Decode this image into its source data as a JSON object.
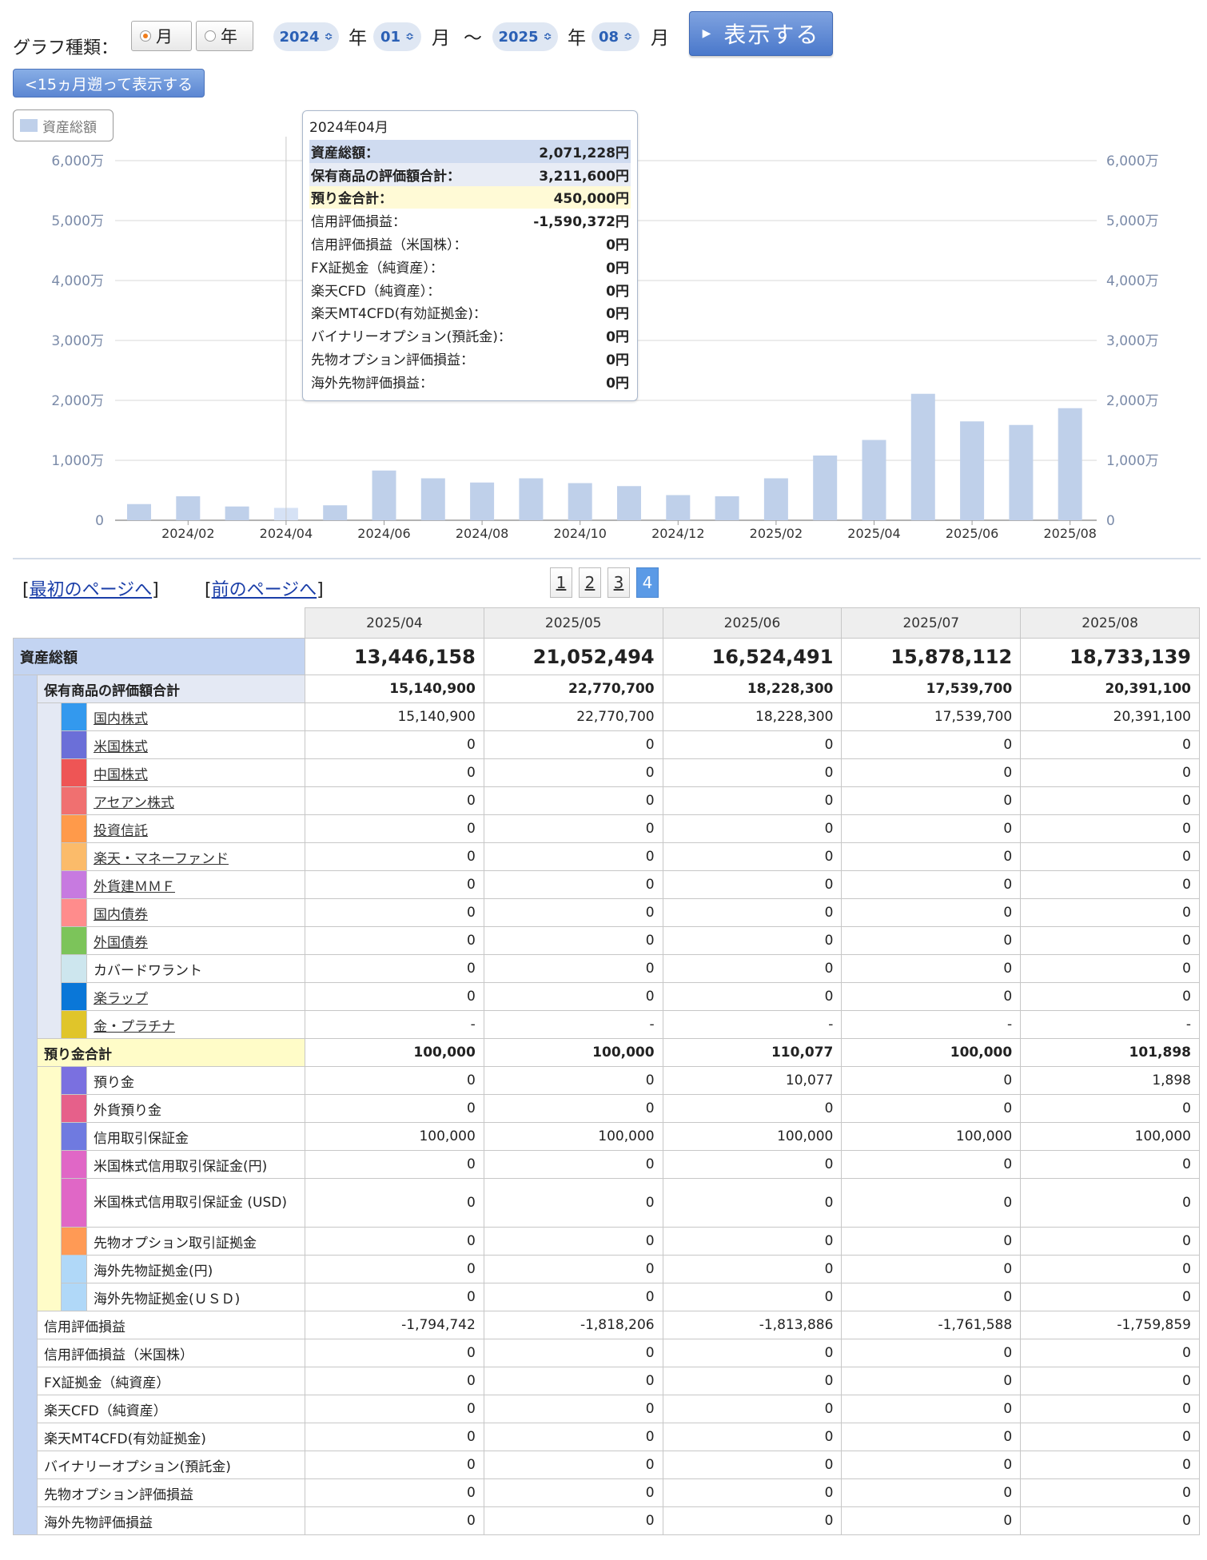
{
  "controls": {
    "graph_type_label": "グラフ種類：",
    "monthly": "月",
    "yearly": "年",
    "start_year": "2024",
    "start_month": "01",
    "end_year": "2025",
    "end_month": "08",
    "year_unit": "年",
    "month_unit": "月",
    "tilde": "〜",
    "show_button": "表示する",
    "back_button": "<15ヵ月遡って表示する"
  },
  "chart_data": {
    "type": "bar",
    "legend": "資産総額",
    "categories": [
      "2024/01",
      "2024/02",
      "2024/03",
      "2024/04",
      "2024/05",
      "2024/06",
      "2024/07",
      "2024/08",
      "2024/09",
      "2024/10",
      "2024/11",
      "2024/12",
      "2025/01",
      "2025/02",
      "2025/03",
      "2025/04",
      "2025/05",
      "2025/06",
      "2025/07",
      "2025/08"
    ],
    "x_tick_labels": [
      "2024/02",
      "2024/04",
      "2024/06",
      "2024/08",
      "2024/10",
      "2024/12",
      "2025/02",
      "2025/04",
      "2025/06",
      "2025/08"
    ],
    "values": [
      2.7,
      4.0,
      2.3,
      2.07,
      2.5,
      8.3,
      7.0,
      6.3,
      7.0,
      6.2,
      5.7,
      4.2,
      4.0,
      7.0,
      10.8,
      13.4,
      21.1,
      16.5,
      15.9,
      18.7
    ],
    "value_unit": "百万円",
    "ylim": [
      0,
      60
    ],
    "y_tick_labels": [
      "0",
      "1,000万",
      "2,000万",
      "3,000万",
      "4,000万",
      "5,000万",
      "6,000万"
    ],
    "highlight_index": 3,
    "colors": {
      "bar": "#bfd0ea",
      "bar_highlight": "#d6e2f5",
      "grid": "#d9d9d9"
    }
  },
  "tooltip": {
    "title": "2024年04月",
    "rows": [
      {
        "label": "資産総額：",
        "value": "2,071,228円"
      },
      {
        "label": "保有商品の評価額合計：",
        "value": "3,211,600円"
      },
      {
        "label": "預り金合計：",
        "value": "450,000円"
      },
      {
        "label": "信用評価損益：",
        "value": "-1,590,372円"
      },
      {
        "label": "信用評価損益（米国株）：",
        "value": "0円"
      },
      {
        "label": "FX証拠金（純資産）：",
        "value": "0円"
      },
      {
        "label": "楽天CFD（純資産）：",
        "value": "0円"
      },
      {
        "label": "楽天MT4CFD(有効証拠金)：",
        "value": "0円"
      },
      {
        "label": "バイナリーオプション(預託金)：",
        "value": "0円"
      },
      {
        "label": "先物オプション評価損益：",
        "value": "0円"
      },
      {
        "label": "海外先物評価損益：",
        "value": "0円"
      }
    ]
  },
  "nav": {
    "first_page": "最初のページへ",
    "prev_page": "前のページへ",
    "pages": [
      "1",
      "2",
      "3",
      "4"
    ],
    "current_page": "4"
  },
  "table": {
    "columns": [
      "2025/04",
      "2025/05",
      "2025/06",
      "2025/07",
      "2025/08"
    ],
    "total": {
      "label": "資産総額",
      "values": [
        "13,446,158",
        "21,052,494",
        "16,524,491",
        "15,878,112",
        "18,733,139"
      ]
    },
    "holdings": {
      "label": "保有商品の評価額合計",
      "values": [
        "15,140,900",
        "22,770,700",
        "18,228,300",
        "17,539,700",
        "20,391,100"
      ],
      "items": [
        {
          "label": "国内株式",
          "color": "#3399ee",
          "link": true,
          "values": [
            "15,140,900",
            "22,770,700",
            "18,228,300",
            "17,539,700",
            "20,391,100"
          ]
        },
        {
          "label": "米国株式",
          "color": "#6b6fd8",
          "link": true,
          "values": [
            "0",
            "0",
            "0",
            "0",
            "0"
          ]
        },
        {
          "label": "中国株式",
          "color": "#ee5555",
          "link": true,
          "values": [
            "0",
            "0",
            "0",
            "0",
            "0"
          ]
        },
        {
          "label": "アセアン株式",
          "color": "#f07070",
          "link": true,
          "values": [
            "0",
            "0",
            "0",
            "0",
            "0"
          ]
        },
        {
          "label": "投資信託",
          "color": "#ff9a4a",
          "link": true,
          "values": [
            "0",
            "0",
            "0",
            "0",
            "0"
          ]
        },
        {
          "label": "楽天・マネーファンド",
          "color": "#fbbb6a",
          "link": true,
          "values": [
            "0",
            "0",
            "0",
            "0",
            "0"
          ]
        },
        {
          "label": "外貨建ＭＭＦ",
          "color": "#c77ae0",
          "link": true,
          "values": [
            "0",
            "0",
            "0",
            "0",
            "0"
          ]
        },
        {
          "label": "国内債券",
          "color": "#ff8c8c",
          "link": true,
          "values": [
            "0",
            "0",
            "0",
            "0",
            "0"
          ]
        },
        {
          "label": "外国債券",
          "color": "#7cc45a",
          "link": true,
          "values": [
            "0",
            "0",
            "0",
            "0",
            "0"
          ]
        },
        {
          "label": "カバードワラント",
          "color": "#cde6ee",
          "link": false,
          "values": [
            "0",
            "0",
            "0",
            "0",
            "0"
          ]
        },
        {
          "label": "楽ラップ",
          "color": "#0a77d8",
          "link": true,
          "values": [
            "0",
            "0",
            "0",
            "0",
            "0"
          ]
        },
        {
          "label": "金・プラチナ",
          "color": "#e0c52a",
          "link": true,
          "values": [
            "-",
            "-",
            "-",
            "-",
            "-"
          ]
        }
      ]
    },
    "deposits": {
      "label": "預り金合計",
      "values": [
        "100,000",
        "100,000",
        "110,077",
        "100,000",
        "101,898"
      ],
      "items": [
        {
          "label": "預り金",
          "color": "#7a70e0",
          "values": [
            "0",
            "0",
            "10,077",
            "0",
            "1,898"
          ]
        },
        {
          "label": "外貨預り金",
          "color": "#e6608a",
          "values": [
            "0",
            "0",
            "0",
            "0",
            "0"
          ]
        },
        {
          "label": "信用取引保証金",
          "color": "#6f7ae0",
          "values": [
            "100,000",
            "100,000",
            "100,000",
            "100,000",
            "100,000"
          ]
        },
        {
          "label": "米国株式信用取引保証金(円)",
          "color": "#e067c6",
          "values": [
            "0",
            "0",
            "0",
            "0",
            "0"
          ]
        },
        {
          "label": "米国株式信用取引保証金 (USD)",
          "color": "#e067c6",
          "values": [
            "0",
            "0",
            "0",
            "0",
            "0"
          ]
        },
        {
          "label": "先物オプション取引証拠金",
          "color": "#ff9a55",
          "values": [
            "0",
            "0",
            "0",
            "0",
            "0"
          ]
        },
        {
          "label": "海外先物証拠金(円)",
          "color": "#b0d8f8",
          "values": [
            "0",
            "0",
            "0",
            "0",
            "0"
          ]
        },
        {
          "label": "海外先物証拠金(ＵＳＤ)",
          "color": "#b0d8f8",
          "values": [
            "0",
            "0",
            "0",
            "0",
            "0"
          ]
        }
      ]
    },
    "others": [
      {
        "label": "信用評価損益",
        "values": [
          "-1,794,742",
          "-1,818,206",
          "-1,813,886",
          "-1,761,588",
          "-1,759,859"
        ]
      },
      {
        "label": "信用評価損益（米国株）",
        "values": [
          "0",
          "0",
          "0",
          "0",
          "0"
        ]
      },
      {
        "label": "FX証拠金（純資産）",
        "values": [
          "0",
          "0",
          "0",
          "0",
          "0"
        ]
      },
      {
        "label": "楽天CFD（純資産）",
        "values": [
          "0",
          "0",
          "0",
          "0",
          "0"
        ]
      },
      {
        "label": "楽天MT4CFD(有効証拠金)",
        "values": [
          "0",
          "0",
          "0",
          "0",
          "0"
        ]
      },
      {
        "label": "バイナリーオプション(預託金)",
        "values": [
          "0",
          "0",
          "0",
          "0",
          "0"
        ]
      },
      {
        "label": "先物オプション評価損益",
        "values": [
          "0",
          "0",
          "0",
          "0",
          "0"
        ]
      },
      {
        "label": "海外先物評価損益",
        "values": [
          "0",
          "0",
          "0",
          "0",
          "0"
        ]
      }
    ]
  }
}
